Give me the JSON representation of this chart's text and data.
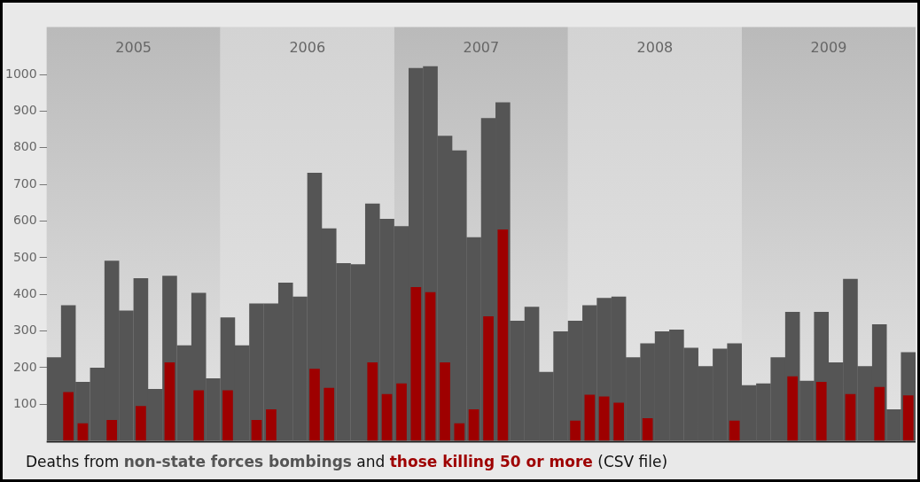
{
  "chart_data": {
    "type": "bar",
    "x": [
      2005.042,
      2005.125,
      2005.208,
      2005.292,
      2005.375,
      2005.458,
      2005.542,
      2005.625,
      2005.708,
      2005.792,
      2005.875,
      2005.958,
      2006.042,
      2006.125,
      2006.208,
      2006.292,
      2006.375,
      2006.458,
      2006.542,
      2006.625,
      2006.708,
      2006.792,
      2006.875,
      2006.958,
      2007.042,
      2007.125,
      2007.208,
      2007.292,
      2007.375,
      2007.458,
      2007.542,
      2007.625,
      2007.708,
      2007.792,
      2007.875,
      2007.958,
      2008.042,
      2008.125,
      2008.208,
      2008.292,
      2008.375,
      2008.458,
      2008.542,
      2008.625,
      2008.708,
      2008.792,
      2008.875,
      2008.958,
      2009.042,
      2009.125,
      2009.208,
      2009.292,
      2009.375,
      2009.458,
      2009.542,
      2009.625,
      2009.708,
      2009.792,
      2009.875,
      2009.958
    ],
    "series": [
      {
        "name": "non-state forces bombings",
        "color": "#555555",
        "values": [
          228,
          370,
          161,
          200,
          492,
          356,
          444,
          142,
          451,
          261,
          404,
          171,
          337,
          261,
          375,
          375,
          432,
          394,
          732,
          580,
          485,
          482,
          648,
          606,
          586,
          1018,
          1023,
          833,
          793,
          556,
          881,
          924,
          328,
          366,
          188,
          299,
          328,
          370,
          390,
          394,
          228,
          266,
          299,
          304,
          254,
          204,
          252,
          266,
          152,
          157,
          228,
          352,
          164,
          352,
          214,
          442,
          204,
          318,
          86,
          242
        ]
      },
      {
        "name": "those killing 50 or more",
        "color": "#9e0000",
        "values": [
          null,
          133,
          48,
          null,
          57,
          null,
          95,
          null,
          214,
          null,
          138,
          null,
          138,
          null,
          57,
          86,
          null,
          null,
          197,
          145,
          null,
          null,
          214,
          128,
          157,
          420,
          406,
          214,
          48,
          86,
          340,
          577,
          null,
          null,
          null,
          null,
          55,
          126,
          121,
          104,
          null,
          62,
          null,
          null,
          null,
          null,
          null,
          55,
          null,
          null,
          null,
          176,
          null,
          161,
          null,
          128,
          null,
          147,
          null,
          124
        ]
      }
    ],
    "xlim": [
      2005,
      2010
    ],
    "xticks": [
      {
        "value": 2005.5,
        "label": "2005"
      },
      {
        "value": 2006.5,
        "label": "2006"
      },
      {
        "value": 2007.5,
        "label": "2007"
      },
      {
        "value": 2008.5,
        "label": "2008"
      },
      {
        "value": 2009.5,
        "label": "2009"
      }
    ],
    "ylim": [
      0,
      1130
    ],
    "yticks": [
      100,
      200,
      300,
      400,
      500,
      600,
      700,
      800,
      900,
      1000
    ],
    "bands": [
      {
        "axis": "x",
        "from": 2005,
        "to": 2006,
        "color": "#bababa"
      },
      {
        "axis": "x",
        "from": 2006,
        "to": 2007,
        "color": "#d3d3d3"
      },
      {
        "axis": "x",
        "from": 2007,
        "to": 2008,
        "color": "#bababa"
      },
      {
        "axis": "x",
        "from": 2008,
        "to": 2009,
        "color": "#d3d3d3"
      },
      {
        "axis": "x",
        "from": 2009,
        "to": 2010,
        "color": "#bababa"
      }
    ],
    "annotations": [
      "Deaths from",
      "and",
      "(CSV file)"
    ]
  }
}
